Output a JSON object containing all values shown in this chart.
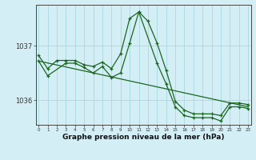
{
  "xlabel": "Graphe pression niveau de la mer (hPa)",
  "bg_color": "#d4eef5",
  "line_color": "#1a6620",
  "grid_color": "#a8d8e0",
  "yticks": [
    1036,
    1037
  ],
  "xticks": [
    0,
    1,
    2,
    3,
    4,
    5,
    6,
    7,
    8,
    9,
    10,
    11,
    12,
    13,
    14,
    15,
    16,
    17,
    18,
    19,
    20,
    21,
    22,
    23
  ],
  "ylim": [
    1035.55,
    1037.75
  ],
  "xlim": [
    -0.3,
    23.3
  ],
  "series1_x": [
    0,
    1,
    2,
    3,
    4,
    5,
    6,
    7,
    8,
    9,
    10,
    11,
    12,
    13,
    14,
    15,
    16,
    17,
    18,
    19,
    20,
    21,
    22,
    23
  ],
  "series1_y": [
    1036.82,
    1036.58,
    1036.73,
    1036.73,
    1036.73,
    1036.65,
    1036.62,
    1036.7,
    1036.58,
    1036.85,
    1037.5,
    1037.62,
    1037.45,
    1037.05,
    1036.55,
    1035.98,
    1035.82,
    1035.75,
    1035.75,
    1035.75,
    1035.72,
    1035.95,
    1035.95,
    1035.92
  ],
  "series2_x": [
    0,
    1,
    3,
    4,
    5,
    6,
    7,
    8,
    9,
    10,
    11,
    13,
    14,
    15,
    16,
    17,
    18,
    19,
    20,
    21,
    22,
    23
  ],
  "series2_y": [
    1036.72,
    1036.45,
    1036.68,
    1036.68,
    1036.6,
    1036.5,
    1036.62,
    1036.42,
    1036.5,
    1037.05,
    1037.62,
    1036.68,
    1036.3,
    1035.88,
    1035.72,
    1035.68,
    1035.68,
    1035.68,
    1035.62,
    1035.88,
    1035.88,
    1035.85
  ],
  "trend_x": [
    0,
    23
  ],
  "trend_y": [
    1036.72,
    1035.88
  ]
}
